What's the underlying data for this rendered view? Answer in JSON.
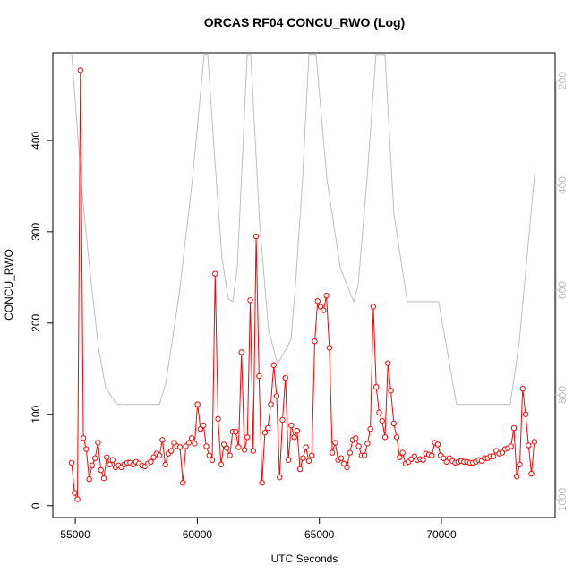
{
  "chart_data": {
    "type": "line",
    "title": "ORCAS RF04 CONCU_RWO (Log)",
    "x_label": "UTC Seconds",
    "y_label": "CONCU_RWO",
    "xlim": [
      54080,
      74660
    ],
    "xticks": [
      55000,
      60000,
      65000,
      70000
    ],
    "ylim": [
      -13,
      496
    ],
    "yticks": [
      0,
      100,
      200,
      300,
      400
    ],
    "y2lim": [
      1034,
      147
    ],
    "y2ticks": [
      200,
      400,
      600,
      800,
      1000
    ],
    "series": [
      {
        "color": "#ff0000",
        "markers": true,
        "x": [
          54850,
          54970,
          55090,
          55210,
          55330,
          55450,
          55570,
          55690,
          55810,
          55930,
          56050,
          56170,
          56290,
          56410,
          56530,
          56650,
          56770,
          56890,
          57010,
          57130,
          57250,
          57370,
          57490,
          57610,
          57730,
          57850,
          57970,
          58090,
          58210,
          58330,
          58450,
          58570,
          58690,
          58810,
          58930,
          59050,
          59170,
          59290,
          59410,
          59530,
          59650,
          59770,
          59890,
          60010,
          60130,
          60250,
          60370,
          60490,
          60610,
          60730,
          60850,
          60970,
          61090,
          61210,
          61330,
          61450,
          61570,
          61690,
          61810,
          61930,
          62050,
          62170,
          62290,
          62410,
          62530,
          62650,
          62770,
          62890,
          63010,
          63130,
          63250,
          63370,
          63490,
          63610,
          63730,
          63850,
          63970,
          64090,
          64210,
          64330,
          64450,
          64570,
          64690,
          64810,
          64930,
          65050,
          65170,
          65290,
          65410,
          65530,
          65650,
          65770,
          65890,
          66010,
          66130,
          66250,
          66370,
          66490,
          66610,
          66730,
          66850,
          66970,
          67090,
          67210,
          67330,
          67450,
          67570,
          67690,
          67810,
          67930,
          68050,
          68170,
          68290,
          68410,
          68530,
          68650,
          68770,
          68890,
          69010,
          69130,
          69250,
          69370,
          69490,
          69610,
          69730,
          69850,
          69970,
          70090,
          70210,
          70330,
          70450,
          70570,
          70690,
          70810,
          70930,
          71050,
          71170,
          71290,
          71410,
          71530,
          71650,
          71770,
          71890,
          72010,
          72130,
          72250,
          72370,
          72490,
          72610,
          72730,
          72850,
          72970,
          73090,
          73210,
          73330,
          73450,
          73570,
          73690,
          73810
        ],
        "values": [
          47,
          14,
          7,
          477,
          74,
          62,
          29,
          44,
          52,
          69,
          39,
          30,
          53,
          45,
          50,
          42,
          44,
          42,
          45,
          47,
          47,
          45,
          48,
          46,
          44,
          43,
          46,
          48,
          53,
          57,
          55,
          72,
          45,
          57,
          60,
          69,
          65,
          64,
          25,
          65,
          69,
          74,
          68,
          111,
          84,
          88,
          65,
          55,
          50,
          254,
          95,
          45,
          67,
          63,
          55,
          81,
          81,
          64,
          168,
          61,
          75,
          225,
          60,
          295,
          142,
          25,
          80,
          85,
          111,
          154,
          120,
          31,
          94,
          140,
          50,
          88,
          75,
          82,
          40,
          52,
          64,
          49,
          55,
          180,
          224,
          218,
          214,
          230,
          173,
          58,
          69,
          50,
          52,
          46,
          42,
          58,
          72,
          74,
          65,
          55,
          55,
          68,
          84,
          218,
          130,
          102,
          93,
          75,
          156,
          126,
          90,
          75,
          53,
          58,
          46,
          48,
          51,
          54,
          50,
          51,
          50,
          57,
          56,
          55,
          69,
          67,
          55,
          52,
          48,
          52,
          49,
          47,
          48,
          49,
          48,
          48,
          47,
          47,
          48,
          50,
          49,
          52,
          52,
          54,
          54,
          60,
          57,
          58,
          62,
          63,
          65,
          85,
          32,
          45,
          128,
          100,
          66,
          35,
          70
        ]
      },
      {
        "color": "#bebebe",
        "axis": "y2",
        "markers": false,
        "x": [
          54853,
          55293,
          55587,
          55953,
          56247,
          56503,
          56687,
          58447,
          58704,
          59254,
          59804,
          60280,
          60427,
          60720,
          61014,
          61271,
          61454,
          61637,
          61894,
          62040,
          62187,
          62554,
          62920,
          63287,
          63654,
          63837,
          64020,
          64314,
          64570,
          64864,
          65307,
          65854,
          66404,
          66587,
          66954,
          67320,
          67687,
          68054,
          68604,
          69887,
          70620,
          71354,
          72820,
          73187,
          73847
        ],
        "values": [
          150,
          421,
          557,
          711,
          787,
          804,
          818,
          818,
          779,
          609,
          387,
          150,
          150,
          353,
          540,
          617,
          622,
          557,
          302,
          150,
          150,
          472,
          677,
          741,
          711,
          694,
          591,
          387,
          150,
          150,
          387,
          557,
          622,
          591,
          387,
          150,
          150,
          455,
          622,
          622,
          818,
          818,
          818,
          700,
          365
        ]
      }
    ]
  }
}
